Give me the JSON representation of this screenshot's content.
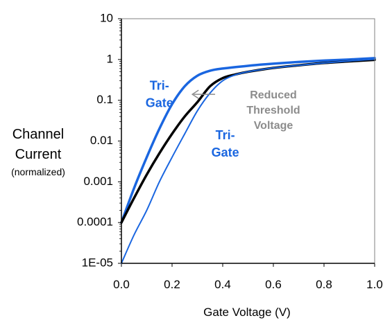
{
  "chart_data": {
    "type": "line",
    "xlabel": "Gate Voltage (V)",
    "ylabel_lines": [
      "Channel",
      "Current",
      "(normalized)"
    ],
    "xlim": [
      0,
      1
    ],
    "ylim": [
      1e-05,
      10
    ],
    "yscale": "log",
    "grid": false,
    "x_ticks": [
      "0.0",
      "0.2",
      "0.4",
      "0.6",
      "0.8",
      "1.0"
    ],
    "y_ticks": [
      "10",
      "1",
      "0.1",
      "0.01",
      "0.001",
      "0.0001",
      "1E-05"
    ],
    "series": [
      {
        "color": "#1a66e0",
        "width": 3.5,
        "points": [
          [
            0,
            0.0001
          ],
          [
            0.05,
            0.0007
          ],
          [
            0.1,
            0.004
          ],
          [
            0.15,
            0.02
          ],
          [
            0.2,
            0.08
          ],
          [
            0.25,
            0.22
          ],
          [
            0.3,
            0.4
          ],
          [
            0.35,
            0.53
          ],
          [
            0.4,
            0.6
          ],
          [
            0.5,
            0.7
          ],
          [
            0.6,
            0.79
          ],
          [
            0.7,
            0.87
          ],
          [
            0.8,
            0.94
          ],
          [
            0.9,
            1.0
          ],
          [
            1.0,
            1.08
          ]
        ]
      },
      {
        "color": "#000000",
        "width": 3.5,
        "points": [
          [
            0,
            0.0001
          ],
          [
            0.05,
            0.0004
          ],
          [
            0.1,
            0.0015
          ],
          [
            0.15,
            0.005
          ],
          [
            0.2,
            0.015
          ],
          [
            0.25,
            0.04
          ],
          [
            0.3,
            0.09
          ],
          [
            0.35,
            0.22
          ],
          [
            0.4,
            0.35
          ],
          [
            0.45,
            0.43
          ],
          [
            0.5,
            0.5
          ],
          [
            0.6,
            0.62
          ],
          [
            0.7,
            0.72
          ],
          [
            0.8,
            0.82
          ],
          [
            0.9,
            0.9
          ],
          [
            1.0,
            0.98
          ]
        ]
      },
      {
        "color": "#1a66e0",
        "width": 2,
        "points": [
          [
            0,
            1e-05
          ],
          [
            0.05,
            5e-05
          ],
          [
            0.1,
            0.0002
          ],
          [
            0.15,
            0.001
          ],
          [
            0.2,
            0.004
          ],
          [
            0.25,
            0.015
          ],
          [
            0.3,
            0.055
          ],
          [
            0.35,
            0.15
          ],
          [
            0.4,
            0.3
          ],
          [
            0.45,
            0.42
          ],
          [
            0.5,
            0.5
          ],
          [
            0.6,
            0.62
          ],
          [
            0.7,
            0.72
          ],
          [
            0.8,
            0.82
          ],
          [
            0.9,
            0.92
          ],
          [
            1.0,
            1.02
          ]
        ]
      }
    ],
    "annotations": [
      {
        "text_lines": [
          "Tri-",
          "Gate"
        ],
        "color": "#1a66e0",
        "x": 0.15,
        "y": 0.18
      },
      {
        "text_lines": [
          "Tri-",
          "Gate"
        ],
        "color": "#1a66e0",
        "x": 0.41,
        "y": 0.011
      },
      {
        "text_lines": [
          "Reduced",
          "Threshold",
          "Voltage"
        ],
        "color": "#8c8c8c",
        "x": 0.6,
        "y": 0.11
      }
    ],
    "arrow": {
      "from": [
        0.37,
        0.14
      ],
      "to": [
        0.28,
        0.14
      ],
      "color": "#8c8c8c"
    }
  }
}
